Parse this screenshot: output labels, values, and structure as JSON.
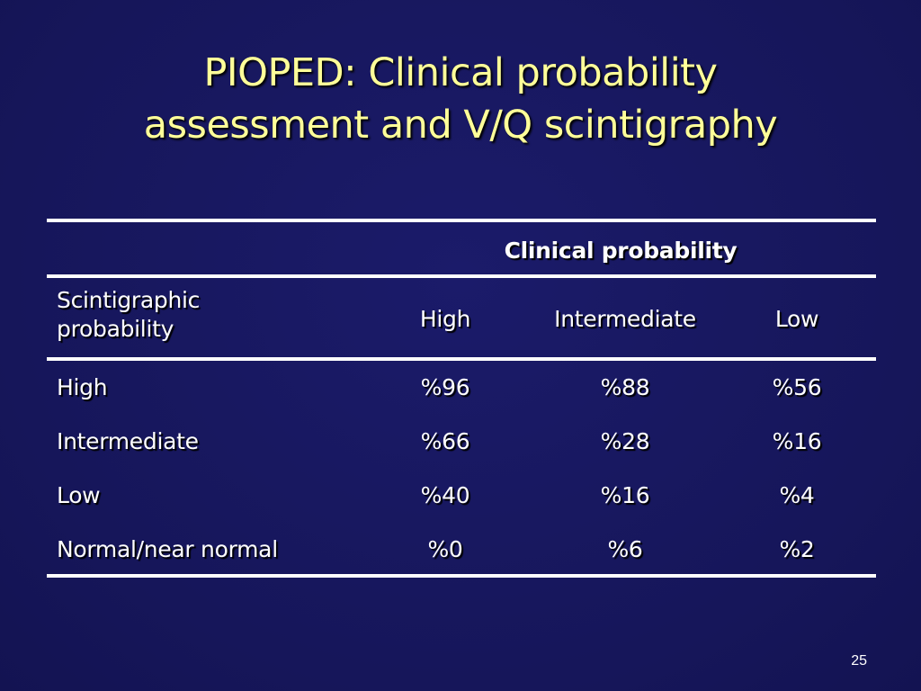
{
  "slide": {
    "title_line1": "PIOPED: Clinical probability",
    "title_line2": "assessment and V/Q scintigraphy",
    "page_number": "25"
  },
  "table": {
    "group_header": "Clinical probability",
    "row_header_label": "Scintigraphic probability",
    "columns": [
      "High",
      "Intermediate",
      "Low"
    ],
    "rows": [
      {
        "label": "High",
        "values": [
          "%96",
          "%88",
          "%56"
        ]
      },
      {
        "label": "Intermediate",
        "values": [
          "%66",
          "%28",
          "%16"
        ]
      },
      {
        "label": "Low",
        "values": [
          "%40",
          "%16",
          "%4"
        ]
      },
      {
        "label": "Normal/near normal",
        "values": [
          "%0",
          "%6",
          "%2"
        ]
      }
    ]
  },
  "colors": {
    "background": "#17175e",
    "title_text": "#ffff99",
    "body_text": "#ffffff",
    "rules": "#ffffff"
  }
}
